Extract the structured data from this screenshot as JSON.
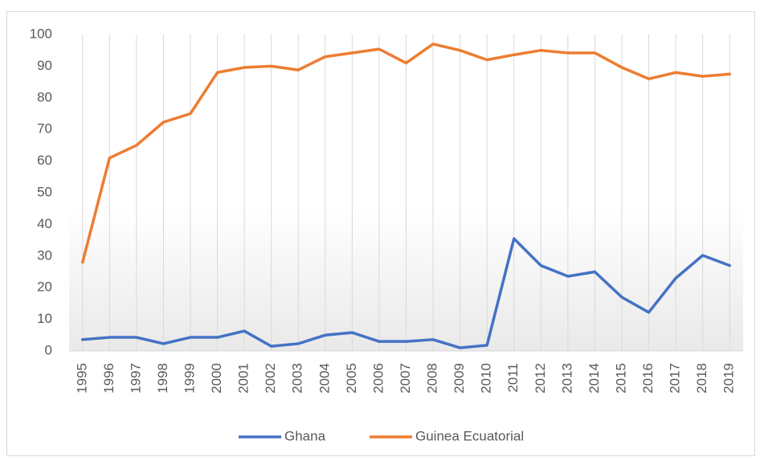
{
  "chart_data": {
    "type": "line",
    "categories": [
      "1995",
      "1996",
      "1997",
      "1998",
      "1999",
      "2000",
      "2001",
      "2002",
      "2003",
      "2004",
      "2005",
      "2006",
      "2007",
      "2008",
      "2009",
      "2010",
      "2011",
      "2012",
      "2013",
      "2014",
      "2015",
      "2016",
      "2017",
      "2018",
      "2019"
    ],
    "series": [
      {
        "name": "Ghana",
        "color": "#4472c4",
        "values": [
          3.6,
          4.3,
          4.3,
          2.3,
          4.3,
          4.3,
          6.3,
          1.5,
          2.3,
          5,
          5.8,
          3,
          3,
          3.6,
          1,
          1.8,
          35.5,
          27,
          23.6,
          25,
          17,
          12.2,
          23,
          30.2,
          27
        ]
      },
      {
        "name": "Guinea Ecuatorial",
        "color": "#ed7d31",
        "values": [
          28,
          61,
          65,
          72.3,
          75,
          88,
          89.6,
          90,
          88.8,
          93,
          94.2,
          95.4,
          91,
          97,
          95,
          92,
          93.6,
          95,
          94.2,
          94.2,
          89.6,
          86,
          88,
          86.8,
          87.5
        ]
      }
    ],
    "ylim": [
      0,
      100
    ],
    "yticks": [
      0,
      10,
      20,
      30,
      40,
      50,
      60,
      70,
      80,
      90,
      100
    ],
    "grid": true,
    "legend": "bottom"
  }
}
